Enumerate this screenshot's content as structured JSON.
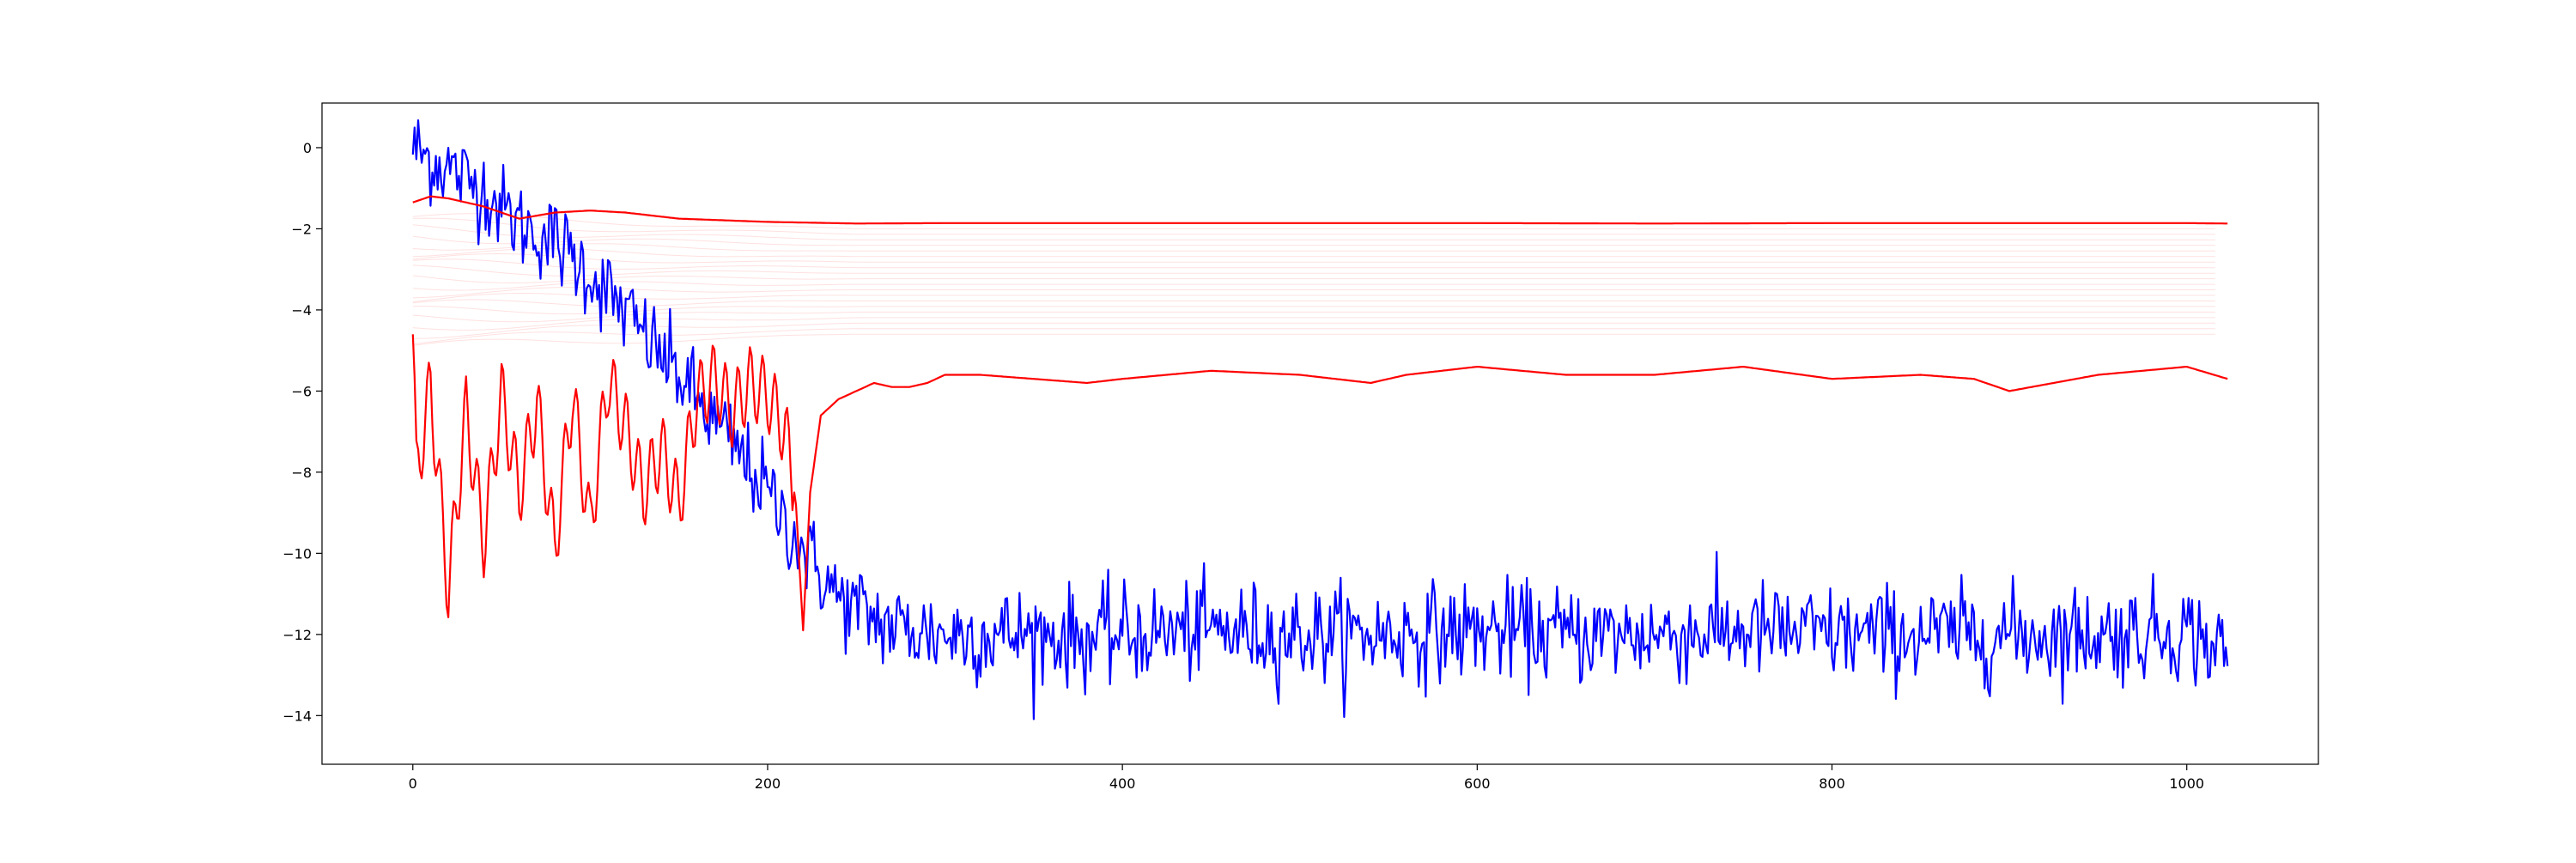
{
  "chart_data": {
    "type": "line",
    "title": "",
    "xlabel": "",
    "ylabel": "",
    "xlim": [
      -51.2,
      1074.2
    ],
    "ylim": [
      -15.2,
      1.1
    ],
    "grid": false,
    "legend": "none",
    "x_ticks": [
      0,
      200,
      400,
      600,
      800,
      1000
    ],
    "x_tick_labels": [
      "0",
      "200",
      "400",
      "600",
      "800",
      "1000"
    ],
    "y_ticks": [
      0,
      -2,
      -4,
      -6,
      -8,
      -10,
      -12,
      -14
    ],
    "y_tick_labels": [
      "0",
      "−2",
      "−4",
      "−6",
      "−8",
      "−10",
      "−12",
      "−14"
    ],
    "series": [
      {
        "color": "#0000ff",
        "style": "noisy",
        "x": [
          0,
          10,
          20,
          30,
          40,
          50,
          60,
          70,
          80,
          90,
          100,
          110,
          120,
          130,
          140,
          150,
          160,
          170,
          180,
          190,
          200,
          210,
          220,
          230,
          240,
          250,
          260,
          270,
          280,
          300,
          320,
          340,
          360,
          380,
          400,
          450,
          500,
          550,
          600,
          650,
          700,
          750,
          800,
          850,
          900,
          950,
          1000,
          1023
        ],
        "y": [
          0,
          -0.3,
          -0.5,
          -0.8,
          -1.0,
          -1.5,
          -1.9,
          -2.1,
          -2.3,
          -2.7,
          -3.1,
          -3.6,
          -4.1,
          -4.6,
          -5.1,
          -5.6,
          -6.2,
          -6.8,
          -7.3,
          -7.9,
          -8.5,
          -9.2,
          -9.9,
          -10.5,
          -11.1,
          -11.4,
          -11.6,
          -11.8,
          -11.9,
          -12.0,
          -12.0,
          -12.0,
          -12.0,
          -12.1,
          -12.0,
          -11.9,
          -12.0,
          -12.0,
          -11.9,
          -12.0,
          -12.0,
          -11.9,
          -12.0,
          -12.0,
          -12.0,
          -12.0,
          -11.9,
          -12.5
        ]
      },
      {
        "color": "#ff0000",
        "style": "smooth",
        "x": [
          0,
          10,
          20,
          40,
          60,
          80,
          100,
          120,
          150,
          200,
          250,
          300,
          400,
          500,
          600,
          700,
          800,
          900,
          1000,
          1023
        ],
        "y": [
          -1.35,
          -1.2,
          -1.25,
          -1.45,
          -1.75,
          -1.6,
          -1.55,
          -1.6,
          -1.75,
          -1.83,
          -1.87,
          -1.86,
          -1.86,
          -1.86,
          -1.86,
          -1.87,
          -1.86,
          -1.86,
          -1.86,
          -1.87
        ]
      },
      {
        "color": "#ff0000",
        "style": "smooth",
        "x": [
          0,
          2,
          10,
          20,
          30,
          40,
          50,
          60,
          70,
          80,
          90,
          100,
          110,
          120,
          130,
          140,
          150,
          160,
          170,
          180,
          190,
          200,
          210,
          216,
          220,
          224,
          230,
          240,
          250,
          260,
          270,
          280,
          290,
          300,
          320,
          350,
          380,
          400,
          450,
          500,
          520,
          540,
          560,
          600,
          650,
          700,
          750,
          800,
          850,
          880,
          900,
          950,
          1000,
          1023
        ],
        "y": [
          -4.6,
          -8.1,
          -5.9,
          -10.9,
          -6.5,
          -9.7,
          -6.1,
          -8.5,
          -6.3,
          -9.9,
          -6.1,
          -9.4,
          -5.7,
          -6.9,
          -8.5,
          -7.4,
          -8.8,
          -6.2,
          -5.7,
          -6.5,
          -5.8,
          -6.1,
          -7.0,
          -8.8,
          -11.9,
          -8.5,
          -6.6,
          -6.2,
          -6.0,
          -5.8,
          -5.9,
          -5.9,
          -5.8,
          -5.6,
          -5.6,
          -5.7,
          -5.8,
          -5.7,
          -5.5,
          -5.6,
          -5.7,
          -5.8,
          -5.6,
          -5.4,
          -5.6,
          -5.6,
          -5.4,
          -5.7,
          -5.6,
          -5.7,
          -6.0,
          -5.6,
          -5.4,
          -5.7
        ]
      }
    ],
    "faint_series": {
      "color": "#ff0000",
      "style": "faint",
      "count": 20,
      "x": [
        0,
        50,
        100,
        150,
        200,
        300,
        500,
        700,
        900,
        1023
      ],
      "y_start_range": [
        -1.7,
        -4.9
      ],
      "y_end_range": [
        -2.0,
        -4.6
      ]
    }
  }
}
